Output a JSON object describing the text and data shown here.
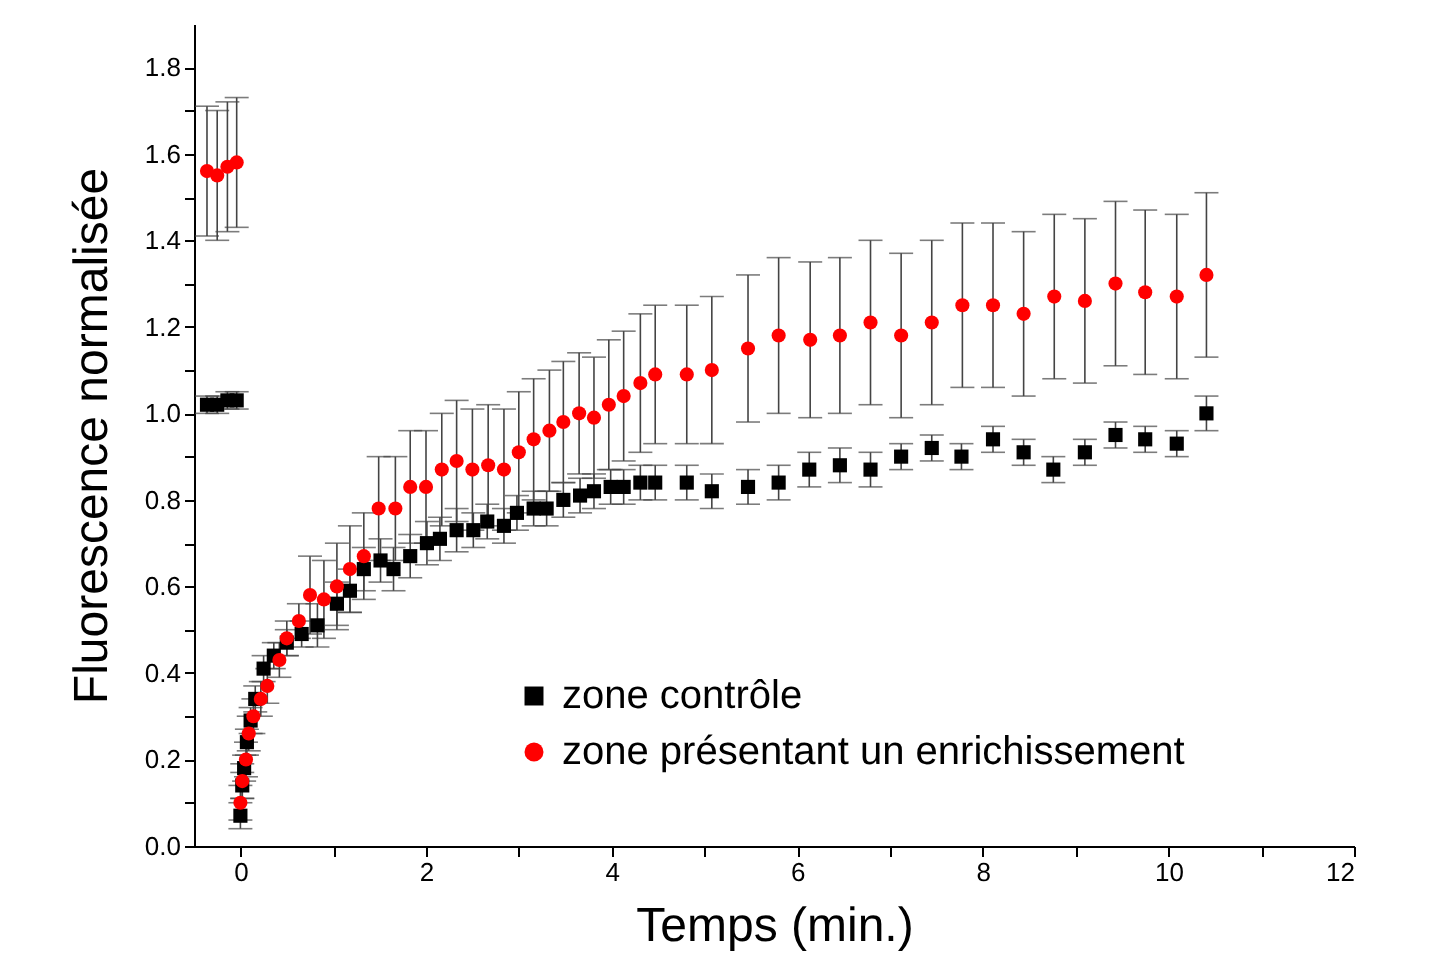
{
  "chart_data": {
    "type": "scatter",
    "xlabel": "Temps (min.)",
    "ylabel": "Fluorescence normalisée",
    "xlim": [
      -0.5,
      12
    ],
    "ylim": [
      0,
      1.9
    ],
    "xticks": [
      0,
      {
        "value": 1,
        "label": null
      },
      2,
      {
        "value": 3,
        "label": null
      },
      4,
      {
        "value": 5,
        "label": null
      },
      6,
      {
        "value": 7,
        "label": null
      },
      8,
      {
        "value": 9,
        "label": null
      },
      10,
      {
        "value": 11,
        "label": null
      },
      12
    ],
    "yticks": [
      {
        "value": 0,
        "label": "0.0"
      },
      {
        "value": 0.1,
        "label": null
      },
      {
        "value": 0.2,
        "label": "0.2"
      },
      {
        "value": 0.3,
        "label": null
      },
      {
        "value": 0.4,
        "label": "0.4"
      },
      {
        "value": 0.5,
        "label": null
      },
      {
        "value": 0.6,
        "label": "0.6"
      },
      {
        "value": 0.7,
        "label": null
      },
      {
        "value": 0.8,
        "label": "0.8"
      },
      {
        "value": 0.9,
        "label": null
      },
      {
        "value": 1,
        "label": "1.0"
      },
      {
        "value": 1.1,
        "label": null
      },
      {
        "value": 1.2,
        "label": "1.2"
      },
      {
        "value": 1.3,
        "label": null
      },
      {
        "value": 1.4,
        "label": "1.4"
      },
      {
        "value": 1.5,
        "label": null
      },
      {
        "value": 1.6,
        "label": "1.6"
      },
      {
        "value": 1.7,
        "label": null
      },
      {
        "value": 1.8,
        "label": "1.8"
      }
    ],
    "grid": false,
    "legend": "bottom right",
    "series": [
      {
        "name": "zone contrôle",
        "color": "#000000",
        "marker": "square",
        "x": [
          -0.36,
          -0.25,
          -0.14,
          -0.04,
          0,
          0.02,
          0.04,
          0.07,
          0.11,
          0.16,
          0.25,
          0.36,
          0.5,
          0.66,
          0.83,
          1.04,
          1.18,
          1.33,
          1.51,
          1.65,
          1.83,
          2.01,
          2.15,
          2.33,
          2.51,
          2.66,
          2.84,
          2.98,
          3.16,
          3.3,
          3.48,
          3.66,
          3.81,
          3.99,
          4.13,
          4.31,
          4.47,
          4.81,
          5.08,
          5.47,
          5.8,
          6.13,
          6.46,
          6.79,
          7.12,
          7.45,
          7.77,
          8.11,
          8.44,
          8.76,
          9.1,
          9.43,
          9.75,
          10.09,
          10.41
        ],
        "values": [
          1.02,
          1.02,
          1.03,
          1.03,
          0.07,
          0.14,
          0.18,
          0.24,
          0.29,
          0.34,
          0.41,
          0.44,
          0.47,
          0.49,
          0.51,
          0.56,
          0.59,
          0.64,
          0.66,
          0.64,
          0.67,
          0.7,
          0.71,
          0.73,
          0.73,
          0.75,
          0.74,
          0.77,
          0.78,
          0.78,
          0.8,
          0.81,
          0.82,
          0.83,
          0.83,
          0.84,
          0.84,
          0.84,
          0.82,
          0.83,
          0.84,
          0.87,
          0.88,
          0.87,
          0.9,
          0.92,
          0.9,
          0.94,
          0.91,
          0.87,
          0.91,
          0.95,
          0.94,
          0.93,
          1.0
        ],
        "errors": [
          0.02,
          0.02,
          0.02,
          0.02,
          0.03,
          0.03,
          0.03,
          0.03,
          0.03,
          0.03,
          0.03,
          0.03,
          0.03,
          0.03,
          0.05,
          0.05,
          0.05,
          0.05,
          0.05,
          0.05,
          0.05,
          0.05,
          0.05,
          0.05,
          0.04,
          0.04,
          0.04,
          0.04,
          0.04,
          0.04,
          0.04,
          0.04,
          0.04,
          0.04,
          0.04,
          0.04,
          0.04,
          0.04,
          0.04,
          0.04,
          0.04,
          0.04,
          0.04,
          0.04,
          0.03,
          0.03,
          0.03,
          0.03,
          0.03,
          0.03,
          0.03,
          0.03,
          0.03,
          0.03,
          0.04
        ]
      },
      {
        "name": "zone présentant un enrichissement",
        "color": "#ff0000",
        "marker": "circle",
        "x": [
          -0.36,
          -0.25,
          -0.14,
          -0.04,
          0,
          0.02,
          0.06,
          0.09,
          0.14,
          0.22,
          0.29,
          0.42,
          0.5,
          0.63,
          0.75,
          0.9,
          1.04,
          1.18,
          1.33,
          1.49,
          1.67,
          1.83,
          2.0,
          2.17,
          2.33,
          2.5,
          2.67,
          2.84,
          3.0,
          3.16,
          3.33,
          3.48,
          3.65,
          3.81,
          3.97,
          4.13,
          4.31,
          4.47,
          4.81,
          5.08,
          5.47,
          5.8,
          6.14,
          6.46,
          6.79,
          7.12,
          7.45,
          7.78,
          8.11,
          8.44,
          8.77,
          9.1,
          9.43,
          9.75,
          10.09,
          10.41
        ],
        "values": [
          1.56,
          1.55,
          1.57,
          1.58,
          0.1,
          0.15,
          0.2,
          0.26,
          0.3,
          0.34,
          0.37,
          0.43,
          0.48,
          0.52,
          0.58,
          0.57,
          0.6,
          0.64,
          0.67,
          0.78,
          0.78,
          0.83,
          0.83,
          0.87,
          0.89,
          0.87,
          0.88,
          0.87,
          0.91,
          0.94,
          0.96,
          0.98,
          1.0,
          0.99,
          1.02,
          1.04,
          1.07,
          1.09,
          1.09,
          1.1,
          1.15,
          1.18,
          1.17,
          1.18,
          1.21,
          1.18,
          1.21,
          1.25,
          1.25,
          1.23,
          1.27,
          1.26,
          1.3,
          1.28,
          1.27,
          1.32
        ],
        "errors": [
          0.15,
          0.15,
          0.15,
          0.15,
          0.04,
          0.04,
          0.04,
          0.04,
          0.04,
          0.04,
          0.04,
          0.04,
          0.04,
          0.04,
          0.09,
          0.09,
          0.1,
          0.1,
          0.1,
          0.12,
          0.12,
          0.13,
          0.13,
          0.13,
          0.14,
          0.14,
          0.14,
          0.14,
          0.14,
          0.14,
          0.14,
          0.14,
          0.14,
          0.14,
          0.15,
          0.15,
          0.16,
          0.16,
          0.16,
          0.17,
          0.17,
          0.18,
          0.18,
          0.18,
          0.19,
          0.19,
          0.19,
          0.19,
          0.19,
          0.19,
          0.19,
          0.19,
          0.19,
          0.19,
          0.19,
          0.19
        ]
      }
    ]
  }
}
